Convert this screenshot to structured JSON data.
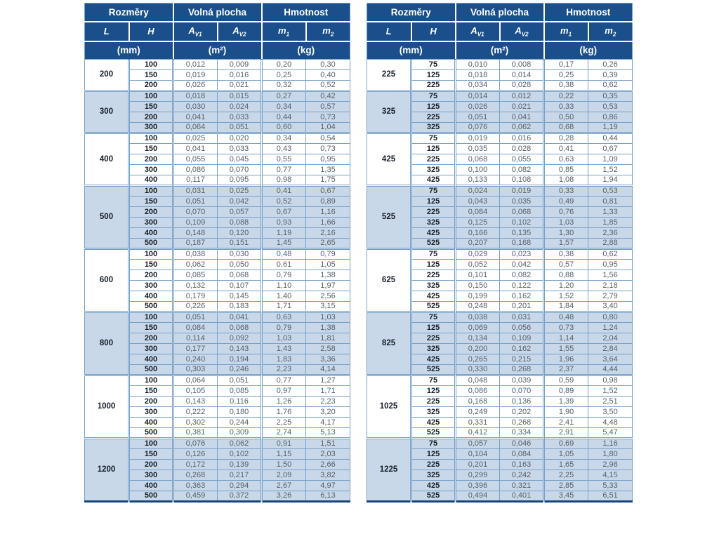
{
  "table_headers": {
    "rozmery": "Rozměry",
    "volna_plocha": "Volná plocha",
    "hmotnost": "Hmotnost",
    "col_L": "L",
    "col_H": "H",
    "col_A": "A",
    "sub_V1": "V1",
    "sub_V2": "V2",
    "col_m": "m",
    "sub_1": "1",
    "sub_2": "2",
    "unit_mm": "(mm)",
    "unit_m2": "(m²)",
    "unit_kg": "(kg)"
  },
  "colors": {
    "header_navy": "#1a4f8b",
    "header_border_dark": "#16457a",
    "band_light_blue": "#c9d8e8",
    "grid_blue": "#76a0ca",
    "value_text": "#555f6b",
    "bold_text": "#151d27"
  },
  "tables": [
    {
      "id": "left",
      "groups": [
        {
          "L": "200",
          "shaded": false,
          "rows": [
            [
              "100",
              "0,012",
              "0,009",
              "0,20",
              "0,30"
            ],
            [
              "150",
              "0,019",
              "0,016",
              "0,25",
              "0,40"
            ],
            [
              "200",
              "0,026",
              "0,021",
              "0,32",
              "0,52"
            ]
          ]
        },
        {
          "L": "300",
          "shaded": true,
          "rows": [
            [
              "100",
              "0,018",
              "0,015",
              "0,27",
              "0,42"
            ],
            [
              "150",
              "0,030",
              "0,024",
              "0,34",
              "0,57"
            ],
            [
              "200",
              "0,041",
              "0,033",
              "0,44",
              "0,73"
            ],
            [
              "300",
              "0,064",
              "0,051",
              "0,60",
              "1,04"
            ]
          ]
        },
        {
          "L": "400",
          "shaded": false,
          "rows": [
            [
              "100",
              "0,025",
              "0,020",
              "0,34",
              "0,54"
            ],
            [
              "150",
              "0,041",
              "0,033",
              "0,43",
              "0,73"
            ],
            [
              "200",
              "0,055",
              "0,045",
              "0,55",
              "0,95"
            ],
            [
              "300",
              "0,086",
              "0,070",
              "0,77",
              "1,35"
            ],
            [
              "400",
              "0,117",
              "0,095",
              "0,98",
              "1,75"
            ]
          ]
        },
        {
          "L": "500",
          "shaded": true,
          "rows": [
            [
              "100",
              "0,031",
              "0,025",
              "0,41",
              "0,67"
            ],
            [
              "150",
              "0,051",
              "0,042",
              "0,52",
              "0,89"
            ],
            [
              "200",
              "0,070",
              "0,057",
              "0,67",
              "1,16"
            ],
            [
              "300",
              "0,109",
              "0,088",
              "0,93",
              "1,66"
            ],
            [
              "400",
              "0,148",
              "0,120",
              "1,19",
              "2,16"
            ],
            [
              "500",
              "0,187",
              "0,151",
              "1,45",
              "2,65"
            ]
          ]
        },
        {
          "L": "600",
          "shaded": false,
          "rows": [
            [
              "100",
              "0,038",
              "0,030",
              "0,48",
              "0,79"
            ],
            [
              "150",
              "0,062",
              "0,050",
              "0,61",
              "1,05"
            ],
            [
              "200",
              "0,085",
              "0,068",
              "0,79",
              "1,38"
            ],
            [
              "300",
              "0,132",
              "0,107",
              "1,10",
              "1,97"
            ],
            [
              "400",
              "0,179",
              "0,145",
              "1,40",
              "2,56"
            ],
            [
              "500",
              "0,226",
              "0,183",
              "1,71",
              "3,15"
            ]
          ]
        },
        {
          "L": "800",
          "shaded": true,
          "rows": [
            [
              "100",
              "0,051",
              "0,041",
              "0,63",
              "1,03"
            ],
            [
              "150",
              "0,084",
              "0,068",
              "0,79",
              "1,38"
            ],
            [
              "200",
              "0,114",
              "0,092",
              "1,03",
              "1,81"
            ],
            [
              "300",
              "0,177",
              "0,143",
              "1,43",
              "2,58"
            ],
            [
              "400",
              "0,240",
              "0,194",
              "1,83",
              "3,36"
            ],
            [
              "500",
              "0,303",
              "0,246",
              "2,23",
              "4,14"
            ]
          ]
        },
        {
          "L": "1000",
          "shaded": false,
          "rows": [
            [
              "100",
              "0,064",
              "0,051",
              "0,77",
              "1,27"
            ],
            [
              "150",
              "0,105",
              "0,085",
              "0,97",
              "1,71"
            ],
            [
              "200",
              "0,143",
              "0,116",
              "1,26",
              "2,23"
            ],
            [
              "300",
              "0,222",
              "0,180",
              "1,76",
              "3,20"
            ],
            [
              "400",
              "0,302",
              "0,244",
              "2,25",
              "4,17"
            ],
            [
              "500",
              "0,381",
              "0,309",
              "2,74",
              "5,13"
            ]
          ]
        },
        {
          "L": "1200",
          "shaded": true,
          "rows": [
            [
              "100",
              "0,076",
              "0,062",
              "0,91",
              "1,51"
            ],
            [
              "150",
              "0,126",
              "0,102",
              "1,15",
              "2,03"
            ],
            [
              "200",
              "0,172",
              "0,139",
              "1,50",
              "2,66"
            ],
            [
              "300",
              "0,268",
              "0,217",
              "2,09",
              "3,82"
            ],
            [
              "400",
              "0,363",
              "0,294",
              "2,67",
              "4,97"
            ],
            [
              "500",
              "0,459",
              "0,372",
              "3,26",
              "6,13"
            ]
          ]
        }
      ]
    },
    {
      "id": "right",
      "groups": [
        {
          "L": "225",
          "shaded": false,
          "rows": [
            [
              "75",
              "0,010",
              "0,008",
              "0,17",
              "0,26"
            ],
            [
              "125",
              "0,018",
              "0,014",
              "0,25",
              "0,39"
            ],
            [
              "225",
              "0,034",
              "0,028",
              "0,38",
              "0,62"
            ]
          ]
        },
        {
          "L": "325",
          "shaded": true,
          "rows": [
            [
              "75",
              "0,014",
              "0,012",
              "0,22",
              "0,35"
            ],
            [
              "125",
              "0,026",
              "0,021",
              "0,33",
              "0,53"
            ],
            [
              "225",
              "0,051",
              "0,041",
              "0,50",
              "0,86"
            ],
            [
              "325",
              "0,076",
              "0,062",
              "0,68",
              "1,19"
            ]
          ]
        },
        {
          "L": "425",
          "shaded": false,
          "rows": [
            [
              "75",
              "0,019",
              "0,016",
              "0,28",
              "0,44"
            ],
            [
              "125",
              "0,035",
              "0,028",
              "0,41",
              "0,67"
            ],
            [
              "225",
              "0,068",
              "0,055",
              "0,63",
              "1,09"
            ],
            [
              "325",
              "0,100",
              "0,082",
              "0,85",
              "1,52"
            ],
            [
              "425",
              "0,133",
              "0,108",
              "1,08",
              "1,94"
            ]
          ]
        },
        {
          "L": "525",
          "shaded": true,
          "rows": [
            [
              "75",
              "0,024",
              "0,019",
              "0,33",
              "0,53"
            ],
            [
              "125",
              "0,043",
              "0,035",
              "0,49",
              "0,81"
            ],
            [
              "225",
              "0,084",
              "0,068",
              "0,76",
              "1,33"
            ],
            [
              "325",
              "0,125",
              "0,102",
              "1,03",
              "1,85"
            ],
            [
              "425",
              "0,166",
              "0,135",
              "1,30",
              "2,36"
            ],
            [
              "525",
              "0,207",
              "0,168",
              "1,57",
              "2,88"
            ]
          ]
        },
        {
          "L": "625",
          "shaded": false,
          "rows": [
            [
              "75",
              "0,029",
              "0,023",
              "0,38",
              "0,62"
            ],
            [
              "125",
              "0,052",
              "0,042",
              "0,57",
              "0,95"
            ],
            [
              "225",
              "0,101",
              "0,082",
              "0,88",
              "1,56"
            ],
            [
              "325",
              "0,150",
              "0,122",
              "1,20",
              "2,18"
            ],
            [
              "425",
              "0,199",
              "0,162",
              "1,52",
              "2,79"
            ],
            [
              "525",
              "0,248",
              "0,201",
              "1,84",
              "3,40"
            ]
          ]
        },
        {
          "L": "825",
          "shaded": true,
          "rows": [
            [
              "75",
              "0,038",
              "0,031",
              "0,48",
              "0,80"
            ],
            [
              "125",
              "0,069",
              "0,056",
              "0,73",
              "1,24"
            ],
            [
              "225",
              "0,134",
              "0,109",
              "1,14",
              "2,04"
            ],
            [
              "325",
              "0,200",
              "0,162",
              "1,55",
              "2,84"
            ],
            [
              "425",
              "0,265",
              "0,215",
              "1,96",
              "3,64"
            ],
            [
              "525",
              "0,330",
              "0,268",
              "2,37",
              "4,44"
            ]
          ]
        },
        {
          "L": "1025",
          "shaded": false,
          "rows": [
            [
              "75",
              "0,048",
              "0,039",
              "0,59",
              "0,98"
            ],
            [
              "125",
              "0,086",
              "0,070",
              "0,89",
              "1,52"
            ],
            [
              "225",
              "0,168",
              "0,136",
              "1,39",
              "2,51"
            ],
            [
              "325",
              "0,249",
              "0,202",
              "1,90",
              "3,50"
            ],
            [
              "425",
              "0,331",
              "0,268",
              "2,41",
              "4,48"
            ],
            [
              "525",
              "0,412",
              "0,334",
              "2,91",
              "5,47"
            ]
          ]
        },
        {
          "L": "1225",
          "shaded": true,
          "rows": [
            [
              "75",
              "0,057",
              "0,046",
              "0,69",
              "1,16"
            ],
            [
              "125",
              "0,104",
              "0,084",
              "1,05",
              "1,80"
            ],
            [
              "225",
              "0,201",
              "0,163",
              "1,65",
              "2,98"
            ],
            [
              "325",
              "0,299",
              "0,242",
              "2,25",
              "4,15"
            ],
            [
              "425",
              "0,396",
              "0,321",
              "2,85",
              "5,33"
            ],
            [
              "525",
              "0,494",
              "0,401",
              "3,45",
              "6,51"
            ]
          ]
        }
      ]
    }
  ]
}
